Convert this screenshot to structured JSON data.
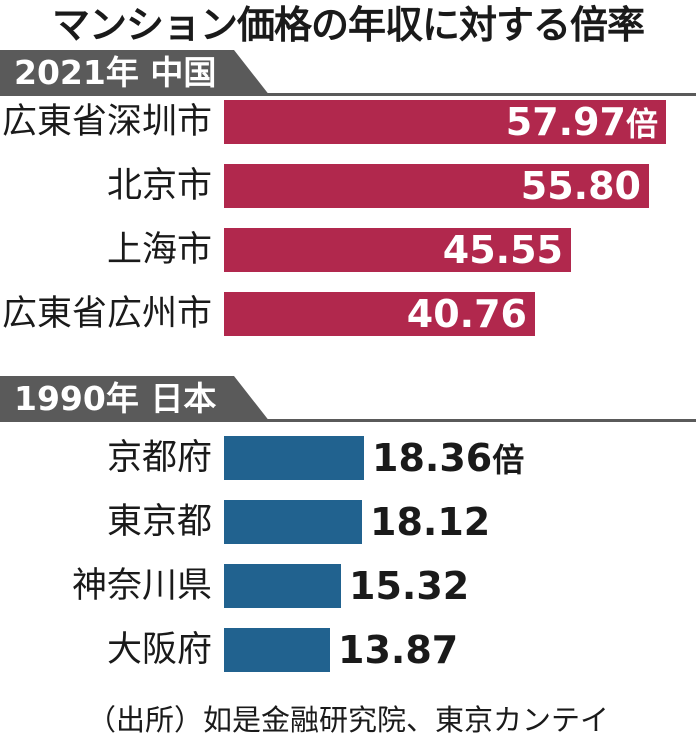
{
  "title": "マンション価格の年収に対する倍率",
  "source": "（出所）如是金融研究院、東京カンテイ",
  "colors": {
    "band": "#5a5a5a",
    "china_bar": "#b1284d",
    "japan_bar": "#21628f"
  },
  "chart_data": [
    {
      "type": "bar",
      "orientation": "horizontal",
      "title": "2021年 中国",
      "categories": [
        "広東省深圳市",
        "北京市",
        "上海市",
        "広東省広州市"
      ],
      "values": [
        57.97,
        55.8,
        45.55,
        40.76
      ],
      "value_labels": [
        "57.97",
        "55.80",
        "45.55",
        "40.76"
      ],
      "unit": "倍",
      "unit_on_first_only": true,
      "label_position": "inside",
      "xlim": [
        0,
        57.97
      ]
    },
    {
      "type": "bar",
      "orientation": "horizontal",
      "title": "1990年 日本",
      "categories": [
        "京都府",
        "東京都",
        "神奈川県",
        "大阪府"
      ],
      "values": [
        18.36,
        18.12,
        15.32,
        13.87
      ],
      "value_labels": [
        "18.36",
        "18.12",
        "15.32",
        "13.87"
      ],
      "unit": "倍",
      "unit_on_first_only": true,
      "label_position": "outside",
      "xlim": [
        0,
        57.97
      ]
    }
  ]
}
